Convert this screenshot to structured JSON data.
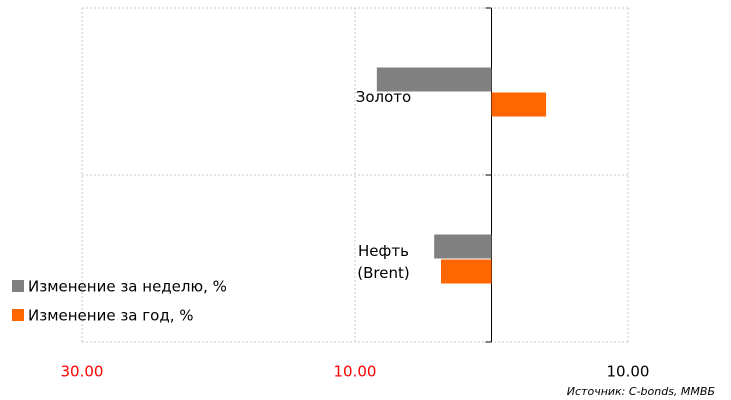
{
  "chart_data": {
    "type": "hbar",
    "categories": [
      "Золото",
      "Нефть\n(Brent)"
    ],
    "series": [
      {
        "name": "Изменение за неделю, %",
        "color": "#808080",
        "values": [
          -8.4,
          -4.2
        ]
      },
      {
        "name": "Изменение за год, %",
        "color": "#ff6600",
        "values": [
          4.0,
          -3.7
        ]
      }
    ],
    "xlim": [
      -30,
      10
    ],
    "xticks": [
      {
        "value": -30,
        "label": "30.00"
      },
      {
        "value": -10,
        "label": "10.00"
      },
      {
        "value": 10,
        "label": "10.00"
      }
    ],
    "negative_tick_color": "#ff0000",
    "grid": true,
    "legend": "lower left",
    "source": "Источник: C-bonds, ММВБ"
  }
}
